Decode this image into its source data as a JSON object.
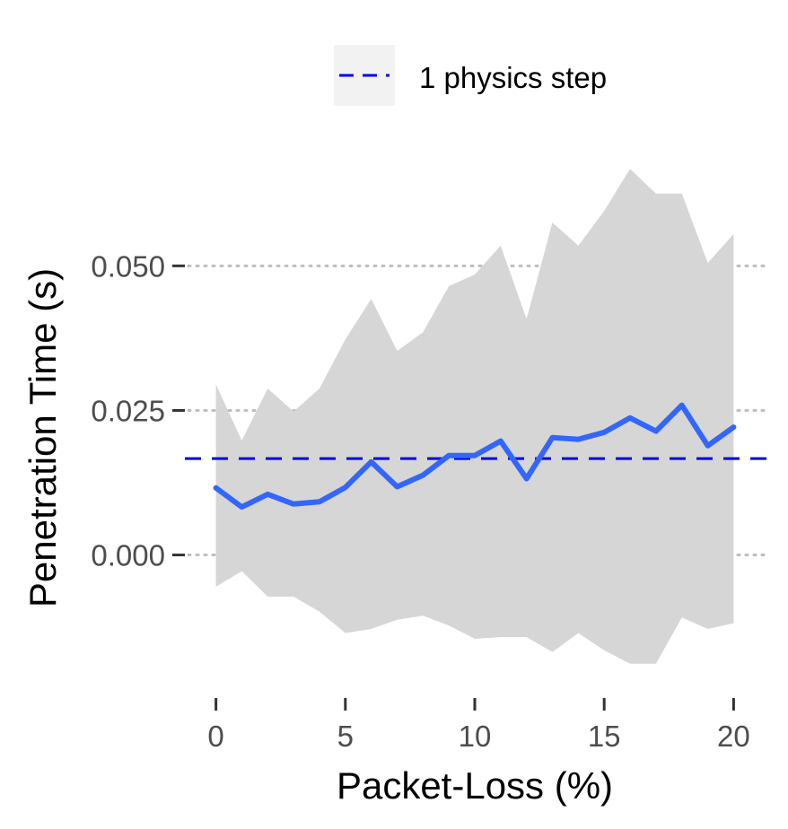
{
  "chart_data": {
    "type": "line",
    "title": "",
    "xlabel": "Packet-Loss (%)",
    "ylabel": "Penetration Time (s)",
    "xlim": [
      -1.2,
      21.2
    ],
    "ylim": [
      -0.0235,
      0.0665
    ],
    "x_ticks": [
      0,
      5,
      10,
      15,
      20
    ],
    "x_tick_labels": [
      "0",
      "5",
      "10",
      "15",
      "20"
    ],
    "y_ticks": [
      0.0,
      0.025,
      0.05
    ],
    "y_tick_labels": [
      "0.000",
      "0.025",
      "0.050"
    ],
    "grid": "horizontal dotted at y ticks",
    "legend_position": "top",
    "series": [
      {
        "kind": "line",
        "x": [
          0,
          1,
          2,
          3,
          4,
          5,
          6,
          7,
          8,
          9,
          10,
          11,
          12,
          13,
          14,
          15,
          16,
          17,
          18,
          19,
          20
        ],
        "values": [
          0.0116,
          0.0083,
          0.0105,
          0.0088,
          0.0092,
          0.0117,
          0.0161,
          0.0118,
          0.0138,
          0.0172,
          0.0172,
          0.0197,
          0.0132,
          0.0203,
          0.02,
          0.0212,
          0.0237,
          0.0214,
          0.0259,
          0.0189,
          0.0221
        ],
        "color": "#3366ff"
      },
      {
        "kind": "ribbon",
        "x": [
          0,
          1,
          2,
          3,
          4,
          5,
          6,
          7,
          8,
          9,
          10,
          11,
          12,
          13,
          14,
          15,
          16,
          17,
          18,
          19,
          20
        ],
        "upper": [
          0.0295,
          0.0198,
          0.0288,
          0.0248,
          0.0288,
          0.0373,
          0.0443,
          0.0353,
          0.0385,
          0.0465,
          0.0485,
          0.0535,
          0.0408,
          0.0575,
          0.0535,
          0.0595,
          0.0668,
          0.0625,
          0.0625,
          0.0505,
          0.0555
        ],
        "lower": [
          -0.0055,
          -0.0028,
          -0.0072,
          -0.0072,
          -0.0098,
          -0.0135,
          -0.0128,
          -0.0112,
          -0.0105,
          -0.0122,
          -0.0145,
          -0.0142,
          -0.0142,
          -0.0168,
          -0.0135,
          -0.0165,
          -0.0188,
          -0.0188,
          -0.0108,
          -0.0128,
          -0.0118
        ],
        "color": "#d6d6d6"
      }
    ],
    "reference_lines": [
      {
        "name": "1 physics step",
        "y": 0.01667,
        "color": "#0000ee",
        "style": "dashed"
      }
    ],
    "legend": [
      {
        "label": "1 physics step",
        "style": "dashed",
        "color": "#0000ee"
      }
    ]
  }
}
